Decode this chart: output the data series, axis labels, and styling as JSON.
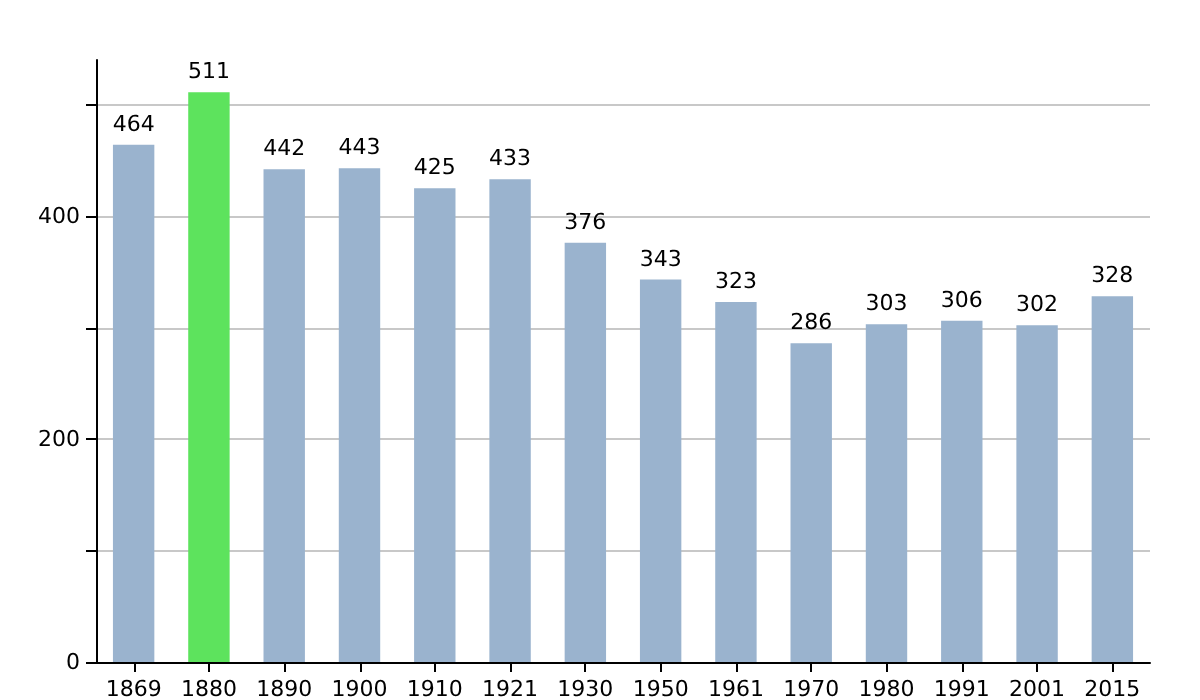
{
  "chart_data": {
    "type": "bar",
    "categories": [
      "1869",
      "1880",
      "1890",
      "1900",
      "1910",
      "1921",
      "1930",
      "1950",
      "1961",
      "1970",
      "1980",
      "1991",
      "2001",
      "2015"
    ],
    "values": [
      464,
      511,
      442,
      443,
      425,
      433,
      376,
      343,
      323,
      286,
      303,
      306,
      302,
      328
    ],
    "colors": [
      "#9ab3ce",
      "#5de35d",
      "#9ab3ce",
      "#9ab3ce",
      "#9ab3ce",
      "#9ab3ce",
      "#9ab3ce",
      "#9ab3ce",
      "#9ab3ce",
      "#9ab3ce",
      "#9ab3ce",
      "#9ab3ce",
      "#9ab3ce",
      "#9ab3ce"
    ],
    "ylim": [
      0,
      540
    ],
    "yticks": [
      0,
      {
        "value": 100,
        "label": null
      },
      200,
      {
        "value": 300,
        "label": null
      },
      400,
      {
        "value": 500,
        "label": null
      }
    ],
    "grid": true,
    "data_labels": true
  }
}
